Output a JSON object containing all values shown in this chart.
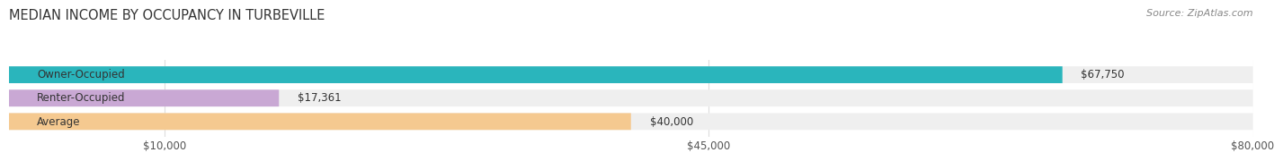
{
  "title": "MEDIAN INCOME BY OCCUPANCY IN TURBEVILLE",
  "source": "Source: ZipAtlas.com",
  "categories": [
    "Owner-Occupied",
    "Renter-Occupied",
    "Average"
  ],
  "values": [
    67750,
    17361,
    40000
  ],
  "bar_colors": [
    "#2ab5bc",
    "#c9a8d4",
    "#f5c990"
  ],
  "bar_bg_color": "#efefef",
  "value_labels": [
    "$67,750",
    "$17,361",
    "$40,000"
  ],
  "xlim": [
    0,
    80000
  ],
  "xticks": [
    10000,
    45000,
    80000
  ],
  "xtick_labels": [
    "$10,000",
    "$45,000",
    "$80,000"
  ],
  "title_fontsize": 10.5,
  "label_fontsize": 8.5,
  "source_fontsize": 8,
  "bar_height": 0.52,
  "background_color": "#ffffff",
  "grid_color": "#dddddd"
}
